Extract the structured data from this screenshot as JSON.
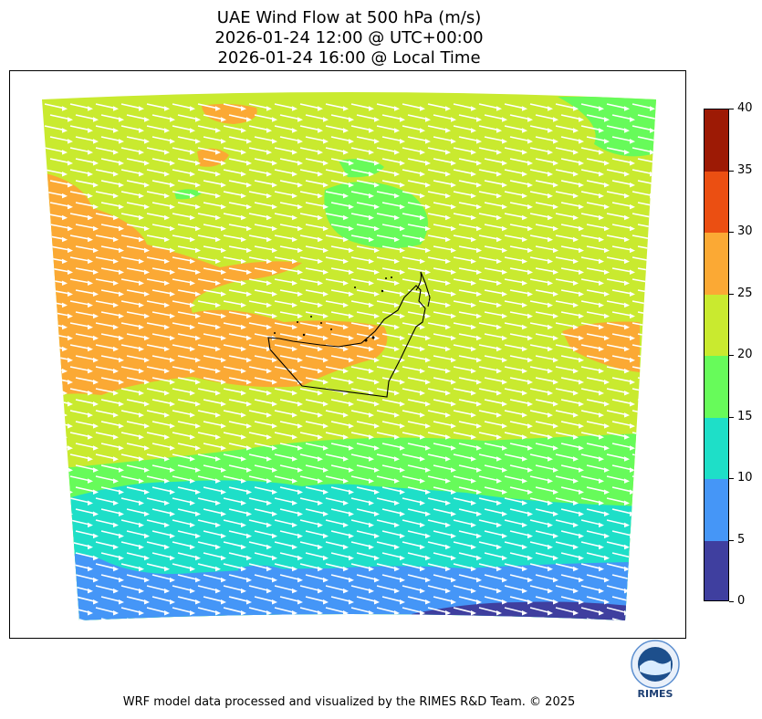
{
  "title_lines": [
    "UAE Wind Flow at 500 hPa (m/s)",
    "2026-01-24 12:00 @ UTC+00:00",
    "2026-01-24 16:00 @ Local Time"
  ],
  "colorbar": {
    "levels": [
      0,
      5,
      10,
      15,
      20,
      25,
      30,
      35,
      40
    ],
    "colors": [
      "#3f3f9f",
      "#4596f7",
      "#1edfc8",
      "#67fb5a",
      "#c9ea2f",
      "#fba934",
      "#eb4f12",
      "#9d1a05"
    ]
  },
  "map": {
    "dominant_fill": "#c9ea2f",
    "arrow_color": "#ffffff",
    "coastline_color": "#000000"
  },
  "logo": {
    "text": "RIMES",
    "icon": "rimes-logo-icon"
  },
  "footer": "WRF model data processed and visualized by the RIMES R&D Team. © 2025"
}
